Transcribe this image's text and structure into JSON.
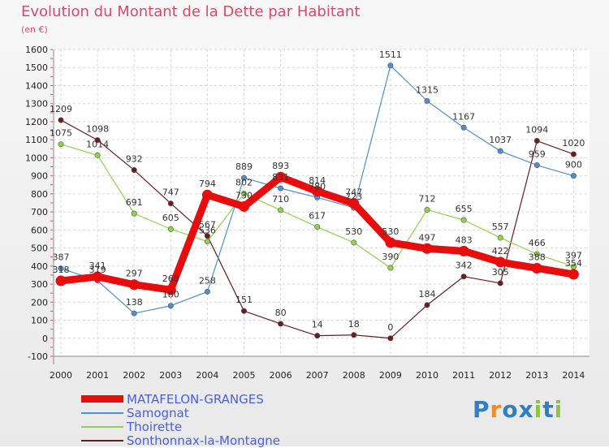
{
  "chart_data": {
    "type": "line",
    "title": "Evolution du Montant de la Dette par Habitant",
    "subtitle": "(en €)",
    "xlabel": "",
    "ylabel": "",
    "x": [
      "2000",
      "2001",
      "2002",
      "2003",
      "2004",
      "2005",
      "2006",
      "2007",
      "2008",
      "2009",
      "2010",
      "2011",
      "2012",
      "2013",
      "2014"
    ],
    "ylim": [
      -100,
      1600
    ],
    "yticks": [
      -100,
      0,
      100,
      200,
      300,
      400,
      500,
      600,
      700,
      800,
      900,
      1000,
      1100,
      1200,
      1300,
      1400,
      1500,
      1600
    ],
    "grid": true,
    "legend_position": "bottom-left",
    "series": [
      {
        "name": "Sonthonnax-la-Montagne",
        "color": "#6b1c1c",
        "values": [
          1209,
          1098,
          932,
          747,
          567,
          151,
          80,
          14,
          18,
          0,
          184,
          342,
          305,
          1094,
          1020
        ]
      },
      {
        "name": "Thoirette",
        "color": "#8fd34a",
        "values": [
          1075,
          1014,
          691,
          605,
          536,
          802,
          710,
          617,
          530,
          390,
          712,
          655,
          557,
          466,
          397
        ]
      },
      {
        "name": "Samognat",
        "color": "#4f8fd1",
        "values": [
          387,
          319,
          138,
          180,
          258,
          889,
          831,
          780,
          723,
          1511,
          1315,
          1167,
          1037,
          959,
          900
        ]
      },
      {
        "name": "MATAFELON-GRANGES",
        "color": "#e80d0d",
        "values": [
          318,
          341,
          297,
          268,
          794,
          730,
          893,
          814,
          747,
          530,
          497,
          483,
          422,
          388,
          354
        ]
      }
    ]
  },
  "branding": {
    "logo_text": "Proxiti"
  }
}
